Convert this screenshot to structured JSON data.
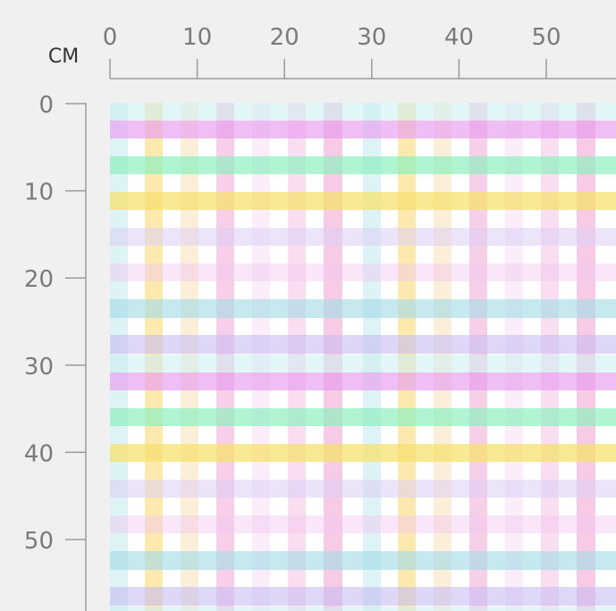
{
  "ruler": {
    "unit": "CM",
    "xticks": [
      0,
      10,
      20,
      30,
      40,
      50
    ],
    "yticks": [
      0,
      10,
      20,
      30,
      40,
      50
    ]
  }
}
